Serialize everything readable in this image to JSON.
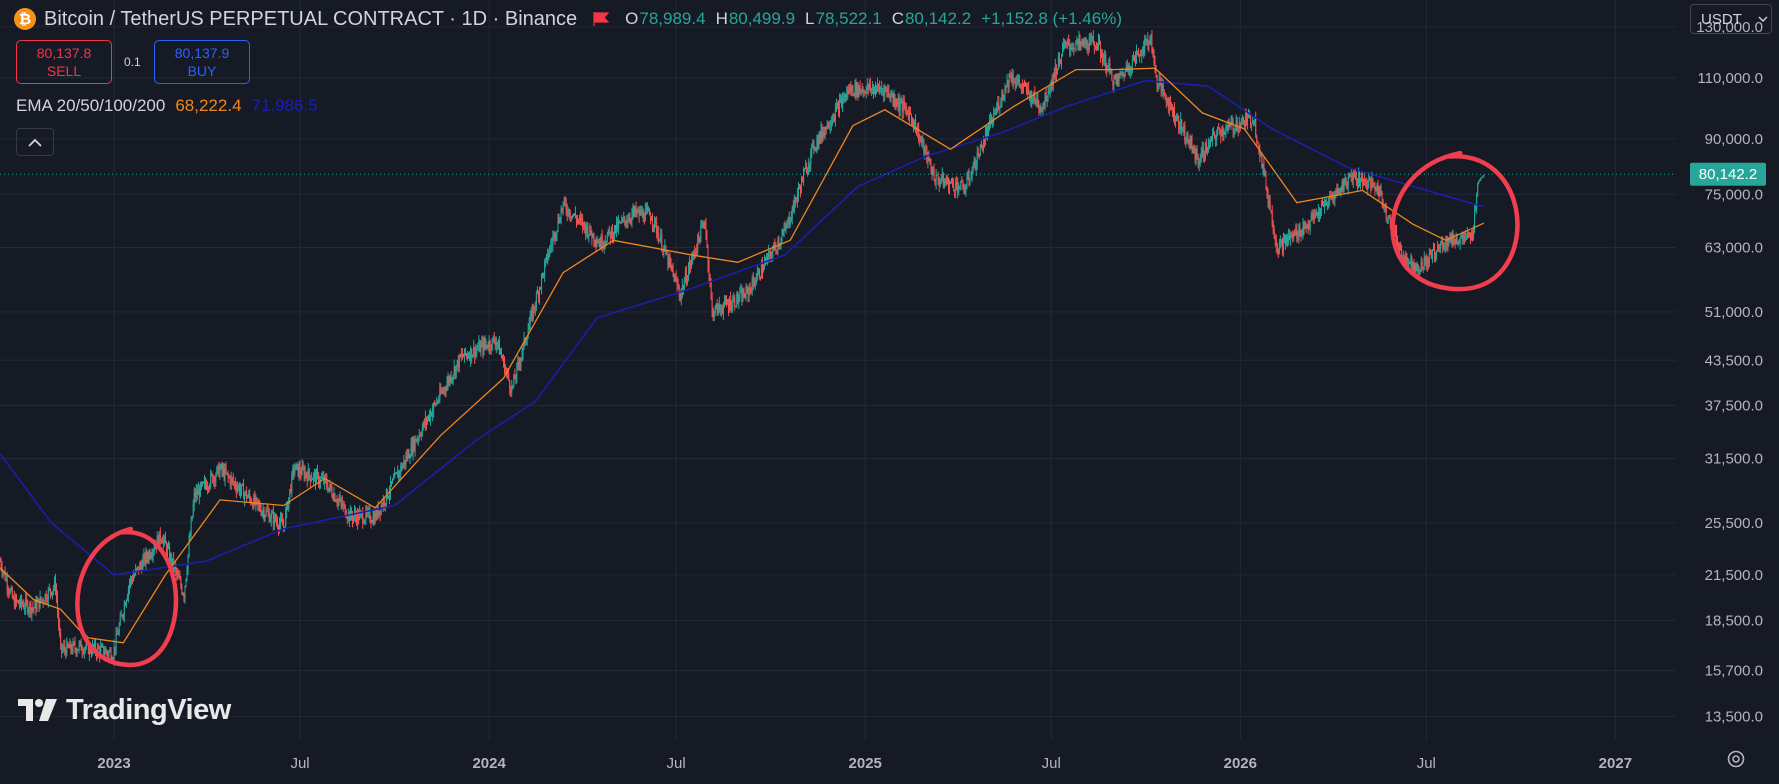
{
  "header": {
    "symbol_icon": "bitcoin-icon",
    "title": "Bitcoin / TetherUS PERPETUAL CONTRACT · 1D · Binance",
    "flag_icon": "red-flag-icon",
    "ohlc": [
      {
        "key": "O",
        "value": "78,989.4"
      },
      {
        "key": "H",
        "value": "80,499.9"
      },
      {
        "key": "L",
        "value": "78,522.1"
      },
      {
        "key": "C",
        "value": "80,142.2"
      }
    ],
    "change": "+1,152.8 (+1.46%)",
    "currency": "USDT",
    "currency_icon": "chevron-down-icon"
  },
  "trade": {
    "sell_price": "80,137.8",
    "sell_label": "SELL",
    "quantity": "0.1",
    "buy_price": "80,137.9",
    "buy_label": "BUY"
  },
  "indicator": {
    "label": "EMA 20/50/100/200",
    "value_1": "68,222.4",
    "value_2": "71,986.5"
  },
  "collapse_icon": "chevron-up-icon",
  "logo_text": "TradingView",
  "price_label": "80,142.2",
  "settings_icon": "settings-gear-icon",
  "colors": {
    "background": "#161a25",
    "up": "#26a69a",
    "down": "#ef5350",
    "ema_short": "#f0861e",
    "ema_long": "#1a1fb0",
    "annotation": "#f03e4f"
  },
  "chart_data": {
    "type": "candlestick",
    "scale": "log",
    "grid": true,
    "x_ticks": [
      "2023",
      "Jul",
      "2024",
      "Jul",
      "2025",
      "Jul",
      "2026",
      "Jul",
      "2027"
    ],
    "y_ticks": [
      "130,000.0",
      "110,000.0",
      "90,000.0",
      "75,000.0",
      "63,000.0",
      "51,000.0",
      "43,500.0",
      "37,500.0",
      "31,500.0",
      "25,500.0",
      "21,500.0",
      "18,500.0",
      "15,700.0",
      "13,500.0"
    ],
    "x_range": [
      "2022-09-12",
      "2027-03-01"
    ],
    "y_range": [
      12500,
      142000
    ],
    "close_series": [
      [
        "2022-09-12",
        22500
      ],
      [
        "2022-09-25",
        19700
      ],
      [
        "2022-10-15",
        19300
      ],
      [
        "2022-11-05",
        20800
      ],
      [
        "2022-11-10",
        16800
      ],
      [
        "2022-12-01",
        17000
      ],
      [
        "2022-12-31",
        16600
      ],
      [
        "2023-01-16",
        21000
      ],
      [
        "2023-02-16",
        24500
      ],
      [
        "2023-03-10",
        20200
      ],
      [
        "2023-03-20",
        27800
      ],
      [
        "2023-04-14",
        30400
      ],
      [
        "2023-05-20",
        27000
      ],
      [
        "2023-06-15",
        25200
      ],
      [
        "2023-06-25",
        30500
      ],
      [
        "2023-07-25",
        29200
      ],
      [
        "2023-08-18",
        26100
      ],
      [
        "2023-09-12",
        26000
      ],
      [
        "2023-10-24",
        34000
      ],
      [
        "2023-12-05",
        44000
      ],
      [
        "2024-01-08",
        46500
      ],
      [
        "2024-01-23",
        39500
      ],
      [
        "2024-02-28",
        62000
      ],
      [
        "2024-03-13",
        72500
      ],
      [
        "2024-04-18",
        64000
      ],
      [
        "2024-05-20",
        70500
      ],
      [
        "2024-06-07",
        70000
      ],
      [
        "2024-07-05",
        54000
      ],
      [
        "2024-07-29",
        69000
      ],
      [
        "2024-08-05",
        51000
      ],
      [
        "2024-09-07",
        54000
      ],
      [
        "2024-10-15",
        66500
      ],
      [
        "2024-11-12",
        88000
      ],
      [
        "2024-12-17",
        106000
      ],
      [
        "2025-01-20",
        106000
      ],
      [
        "2025-02-15",
        97000
      ],
      [
        "2025-03-10",
        79000
      ],
      [
        "2025-04-08",
        76500
      ],
      [
        "2025-05-22",
        111000
      ],
      [
        "2025-06-22",
        100000
      ],
      [
        "2025-07-14",
        122000
      ],
      [
        "2025-08-14",
        123500
      ],
      [
        "2025-09-01",
        108000
      ],
      [
        "2025-10-06",
        125500
      ],
      [
        "2025-10-11",
        110000
      ],
      [
        "2025-11-21",
        84000
      ],
      [
        "2025-12-10",
        92000
      ],
      [
        "2026-01-14",
        96500
      ],
      [
        "2026-02-06",
        63000
      ],
      [
        "2026-03-08",
        68000
      ],
      [
        "2026-04-20",
        80000
      ],
      [
        "2026-05-15",
        76500
      ],
      [
        "2026-06-08",
        61000
      ],
      [
        "2026-06-25",
        59000
      ],
      [
        "2026-07-20",
        64500
      ],
      [
        "2026-08-15",
        65000
      ],
      [
        "2026-08-20",
        78000
      ],
      [
        "2026-08-26",
        80142.2
      ]
    ],
    "ema_20_50": [
      [
        "2022-09-12",
        22000
      ],
      [
        "2022-10-15",
        19800
      ],
      [
        "2022-11-10",
        19200
      ],
      [
        "2022-12-05",
        17500
      ],
      [
        "2023-01-10",
        17200
      ],
      [
        "2023-02-20",
        21500
      ],
      [
        "2023-04-14",
        27500
      ],
      [
        "2023-06-15",
        27000
      ],
      [
        "2023-07-25",
        29500
      ],
      [
        "2023-09-12",
        26800
      ],
      [
        "2023-11-15",
        34000
      ],
      [
        "2024-01-15",
        41000
      ],
      [
        "2024-03-13",
        58000
      ],
      [
        "2024-05-01",
        64500
      ],
      [
        "2024-07-15",
        61500
      ],
      [
        "2024-08-30",
        60000
      ],
      [
        "2024-10-20",
        64500
      ],
      [
        "2024-12-20",
        94000
      ],
      [
        "2025-01-20",
        99000
      ],
      [
        "2025-03-25",
        87000
      ],
      [
        "2025-05-25",
        100000
      ],
      [
        "2025-07-25",
        113000
      ],
      [
        "2025-08-30",
        113000
      ],
      [
        "2025-10-10",
        113500
      ],
      [
        "2025-11-25",
        98000
      ],
      [
        "2026-01-05",
        93000
      ],
      [
        "2026-02-25",
        73000
      ],
      [
        "2026-04-30",
        76000
      ],
      [
        "2026-06-18",
        68000
      ],
      [
        "2026-07-20",
        64500
      ],
      [
        "2026-08-26",
        68222.4
      ]
    ],
    "ema_100_200": [
      [
        "2022-09-12",
        32000
      ],
      [
        "2022-11-01",
        25500
      ],
      [
        "2023-01-01",
        21500
      ],
      [
        "2023-04-01",
        22500
      ],
      [
        "2023-06-15",
        25000
      ],
      [
        "2023-10-01",
        27000
      ],
      [
        "2023-12-20",
        33500
      ],
      [
        "2024-02-15",
        38000
      ],
      [
        "2024-04-15",
        50000
      ],
      [
        "2024-07-15",
        55000
      ],
      [
        "2024-10-15",
        61500
      ],
      [
        "2024-12-25",
        77000
      ],
      [
        "2025-03-01",
        85000
      ],
      [
        "2025-05-15",
        92000
      ],
      [
        "2025-07-15",
        100000
      ],
      [
        "2025-10-01",
        109000
      ],
      [
        "2025-12-01",
        107000
      ],
      [
        "2026-02-01",
        93000
      ],
      [
        "2026-04-15",
        82000
      ],
      [
        "2026-08-26",
        71986.5
      ]
    ],
    "annotations": [
      {
        "type": "hand-drawn circle",
        "around": [
          "2022-12",
          "2023-02"
        ]
      },
      {
        "type": "hand-drawn circle",
        "around": [
          "2026-06",
          "2026-09"
        ]
      }
    ]
  }
}
